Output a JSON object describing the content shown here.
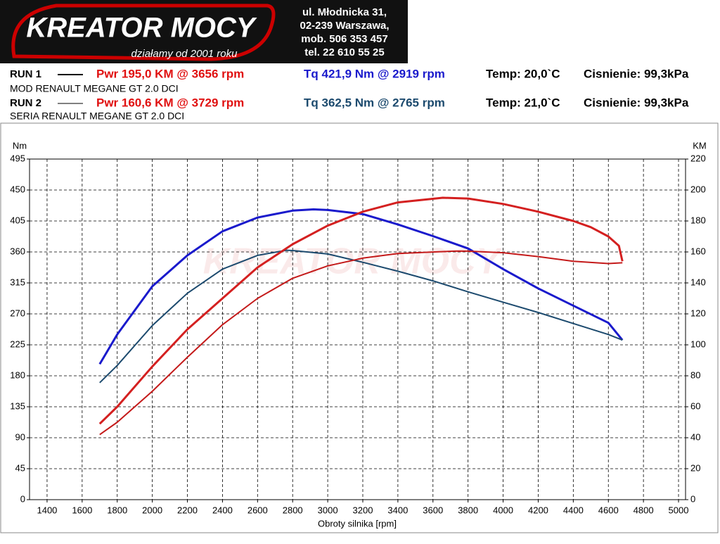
{
  "header": {
    "logo": "KREATOR MOCY",
    "slogan": "działamy od 2001 roku",
    "address": [
      "ul. Młodnicka 31,",
      "02-239  Warszawa,",
      "mob.  506 353 457",
      "tel.  22 610 55 25"
    ]
  },
  "runs": [
    {
      "label": "RUN 1",
      "power": "Pwr  195,0 KM @ 3656 rpm",
      "torque": "Tq 421,9 Nm @ 2919 rpm",
      "temp": "Temp: 20,0`C",
      "pressure": "Cisnienie: 99,3kPa",
      "vehicle": "MOD RENAULT MEGANE GT 2.0 DCI"
    },
    {
      "label": "RUN 2",
      "power": "Pwr  160,6 KM @ 3729 rpm",
      "torque": "Tq 362,5 Nm @ 2765 rpm",
      "temp": "Temp: 21,0`C",
      "pressure": "Cisnienie: 99,3kPa",
      "vehicle": "SERIA RENAULT MEGANE GT 2.0 DCI"
    }
  ],
  "chart_data": {
    "type": "line",
    "x_label": "Obroty silnika [rpm]",
    "y_label": "Nm",
    "y2_label": "KM",
    "xlim": [
      1300,
      5040
    ],
    "xticks": [
      1400,
      1600,
      1800,
      2000,
      2200,
      2400,
      2600,
      2800,
      3000,
      3200,
      3400,
      3600,
      3800,
      4000,
      4200,
      4400,
      4600,
      4800,
      5000
    ],
    "ylim": [
      0,
      495
    ],
    "yticks": [
      0,
      45,
      90,
      135,
      180,
      225,
      270,
      315,
      360,
      405,
      450,
      495
    ],
    "y2lim": [
      0,
      220
    ],
    "y2ticks": [
      0,
      20,
      40,
      60,
      80,
      100,
      120,
      140,
      160,
      180,
      200,
      220
    ],
    "grid": true,
    "series": [
      {
        "name": "Tq RUN 1",
        "color": "#1a1acc",
        "axis": "y",
        "x": [
          1700,
          1800,
          2000,
          2200,
          2400,
          2600,
          2800,
          2919,
          3000,
          3200,
          3400,
          3600,
          3800,
          4000,
          4200,
          4400,
          4600,
          4680
        ],
        "values": [
          197,
          240,
          310,
          355,
          390,
          410,
          420,
          421.9,
          421,
          415,
          400,
          383,
          365,
          335,
          307,
          282,
          257,
          232
        ]
      },
      {
        "name": "Tq RUN 2",
        "color": "#1c4a6e",
        "axis": "y",
        "x": [
          1700,
          1800,
          2000,
          2200,
          2400,
          2600,
          2765,
          2800,
          3000,
          3200,
          3400,
          3600,
          3800,
          4000,
          4200,
          4400,
          4600,
          4680
        ],
        "values": [
          170,
          195,
          253,
          300,
          335,
          355,
          362.5,
          362,
          357,
          345,
          332,
          318,
          302,
          287,
          272,
          256,
          240,
          232
        ]
      },
      {
        "name": "Pwr RUN 1",
        "color": "#d42020",
        "axis": "y2",
        "x": [
          1700,
          1800,
          2000,
          2200,
          2400,
          2600,
          2800,
          3000,
          3200,
          3400,
          3656,
          3800,
          4000,
          4200,
          4400,
          4500,
          4600,
          4660,
          4680
        ],
        "values": [
          49,
          60,
          86,
          110,
          130,
          150,
          165,
          177,
          186,
          192,
          195,
          194.5,
          191,
          186,
          180,
          176,
          170,
          164,
          154
        ]
      },
      {
        "name": "Pwr RUN 2",
        "color": "#c41a1a",
        "axis": "y2",
        "x": [
          1700,
          1800,
          2000,
          2200,
          2400,
          2600,
          2800,
          3000,
          3200,
          3400,
          3729,
          3800,
          4000,
          4200,
          4400,
          4600,
          4680
        ],
        "values": [
          42,
          50,
          70,
          92,
          113,
          130,
          143,
          151,
          156,
          159,
          160.6,
          160.5,
          159.5,
          157,
          154,
          152.5,
          153
        ]
      }
    ]
  }
}
